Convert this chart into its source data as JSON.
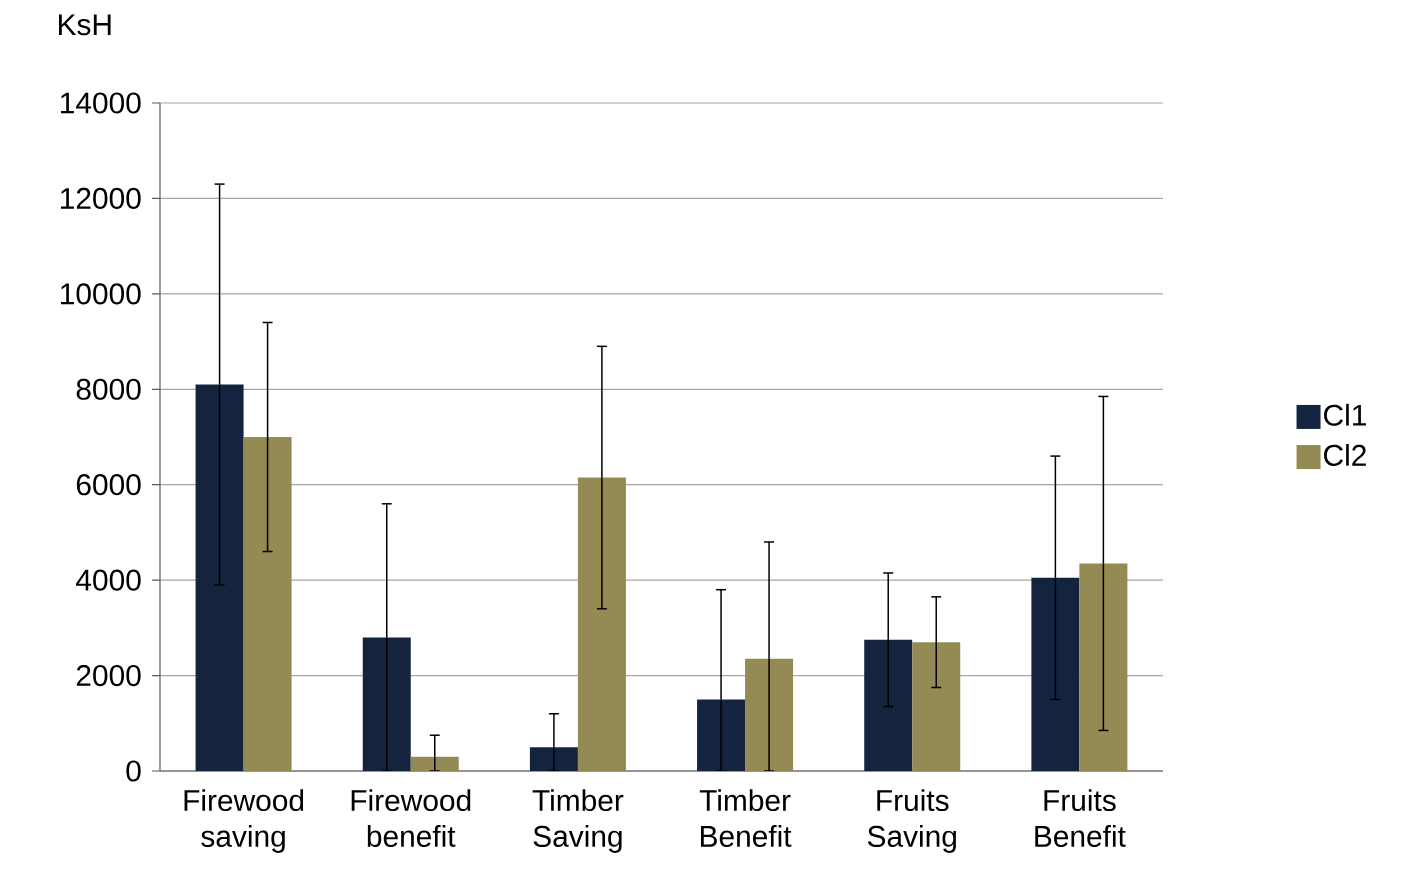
{
  "chart_data": {
    "type": "bar",
    "ylabel": "KsH",
    "categories": [
      "Firewood saving",
      "Firewood benefit",
      "Timber Saving",
      "Timber Benefit",
      "Fruits Saving",
      "Fruits Benefit"
    ],
    "series": [
      {
        "name": "Cl1",
        "color": "#14243f",
        "values": [
          8100,
          2800,
          500,
          1500,
          2750,
          4050
        ],
        "errors": [
          4200,
          2800,
          [
            0,
            1200
          ],
          [
            0,
            3800
          ],
          1400,
          2550
        ]
      },
      {
        "name": "Cl2",
        "color": "#948a54",
        "values": [
          7000,
          300,
          6150,
          2350,
          2700,
          4350
        ],
        "errors": [
          2400,
          [
            0,
            750
          ],
          2750,
          [
            0,
            4800
          ],
          950,
          3500
        ]
      }
    ],
    "ylim": [
      0,
      14000
    ],
    "yticks": [
      0,
      2000,
      4000,
      6000,
      8000,
      10000,
      12000,
      14000
    ],
    "grid": "y",
    "legend": "right"
  }
}
